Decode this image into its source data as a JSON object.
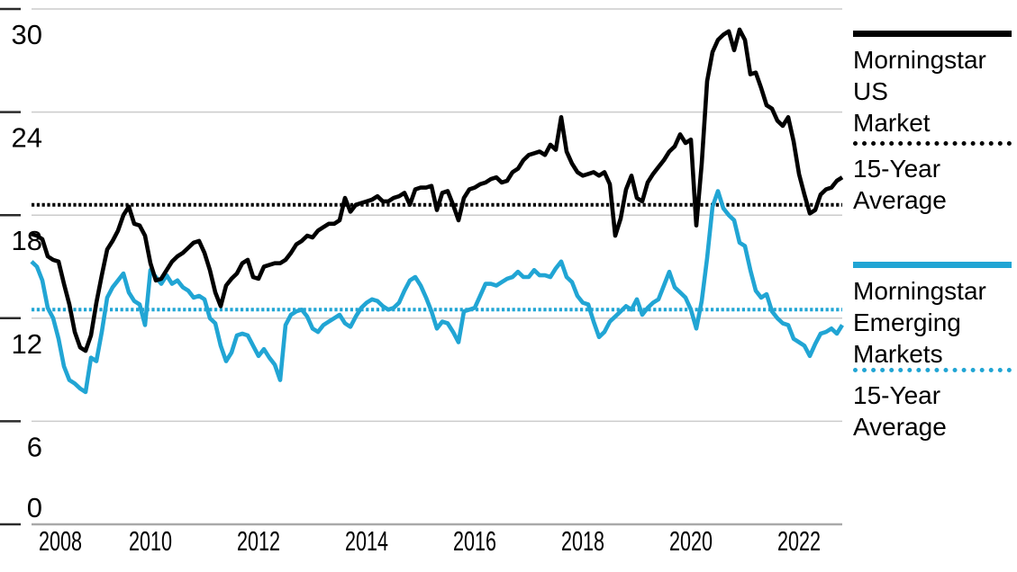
{
  "chart_data": {
    "type": "line",
    "x_axis": {
      "tick_years": [
        2008,
        2010,
        2012,
        2014,
        2016,
        2018,
        2020,
        2022
      ],
      "tick_labels": [
        "2008",
        "2010",
        "2012",
        "2014",
        "2016",
        "2018",
        "2020",
        "2022"
      ],
      "range": [
        2007.8,
        2022.8
      ]
    },
    "y_axis": {
      "ticks": [
        30,
        24,
        18,
        12,
        6,
        0
      ],
      "tick_labels": [
        "30",
        "24",
        "18",
        "12",
        "6",
        "0"
      ],
      "range": [
        0,
        30
      ]
    },
    "grid": true,
    "legend_position": "right",
    "series": [
      {
        "id": "us-market",
        "name": "Morningstar US Market",
        "type": "line",
        "style": "solid",
        "color": "#000000",
        "x_start": 2007.8,
        "x_step": 0.1,
        "values": [
          16.9,
          16.8,
          16.6,
          15.6,
          15.4,
          15.3,
          14.0,
          12.8,
          11.2,
          10.3,
          10.1,
          11.0,
          12.9,
          14.5,
          16.0,
          16.5,
          17.1,
          18.0,
          18.5,
          17.5,
          17.4,
          16.8,
          15.2,
          14.2,
          14.3,
          14.8,
          15.3,
          15.6,
          15.8,
          16.1,
          16.4,
          16.5,
          15.8,
          14.8,
          13.5,
          12.7,
          13.9,
          14.3,
          14.6,
          15.2,
          15.4,
          14.4,
          14.3,
          15.0,
          15.1,
          15.2,
          15.2,
          15.4,
          15.8,
          16.3,
          16.5,
          16.8,
          16.7,
          17.1,
          17.3,
          17.5,
          17.5,
          17.7,
          19.0,
          18.2,
          18.6,
          18.7,
          18.8,
          18.9,
          19.1,
          18.8,
          18.8,
          19.0,
          19.1,
          19.3,
          18.6,
          19.5,
          19.6,
          19.6,
          19.7,
          18.3,
          19.3,
          19.4,
          18.6,
          17.7,
          19.0,
          19.5,
          19.6,
          19.8,
          19.9,
          20.1,
          20.2,
          19.9,
          20.0,
          20.5,
          20.7,
          21.2,
          21.5,
          21.6,
          21.7,
          21.5,
          22.1,
          21.8,
          23.7,
          21.7,
          21.0,
          20.5,
          20.3,
          20.4,
          20.5,
          20.3,
          20.5,
          19.8,
          16.8,
          17.8,
          19.5,
          20.3,
          19.0,
          18.8,
          19.9,
          20.4,
          20.8,
          21.2,
          21.7,
          22.0,
          22.7,
          22.2,
          22.4,
          17.4,
          21.0,
          25.8,
          27.5,
          28.2,
          28.5,
          28.7,
          27.6,
          28.8,
          28.2,
          26.2,
          26.3,
          25.4,
          24.4,
          24.2,
          23.5,
          23.2,
          23.7,
          22.3,
          20.4,
          19.2,
          18.1,
          18.3,
          19.2,
          19.5,
          19.6,
          20.0,
          20.2
        ]
      },
      {
        "id": "us-15yr-average",
        "name": "15-Year Average (US Market)",
        "type": "hline",
        "style": "dotted",
        "color": "#000000",
        "value": 18.6
      },
      {
        "id": "emerging-markets",
        "name": "Morningstar Emerging Markets",
        "type": "line",
        "style": "solid",
        "color": "#21A5D4",
        "x_start": 2007.8,
        "x_step": 0.1,
        "values": [
          15.3,
          15.0,
          14.2,
          12.6,
          12.0,
          10.8,
          9.2,
          8.4,
          8.2,
          7.9,
          7.7,
          9.7,
          9.5,
          11.2,
          13.2,
          13.8,
          14.2,
          14.6,
          13.5,
          13.0,
          12.8,
          11.6,
          14.8,
          14.4,
          14.0,
          14.5,
          14.0,
          14.2,
          13.8,
          13.6,
          13.2,
          13.3,
          13.1,
          12.0,
          11.7,
          10.4,
          9.5,
          10.0,
          11.0,
          11.1,
          11.0,
          10.4,
          9.8,
          10.2,
          9.7,
          9.3,
          8.4,
          11.6,
          12.2,
          12.4,
          12.5,
          12.1,
          11.4,
          11.2,
          11.6,
          11.8,
          12.0,
          12.2,
          11.7,
          11.5,
          12.1,
          12.6,
          12.9,
          13.1,
          13.0,
          12.7,
          12.5,
          12.6,
          12.9,
          13.6,
          14.2,
          14.4,
          13.9,
          13.2,
          12.4,
          11.4,
          11.8,
          11.7,
          11.2,
          10.6,
          12.4,
          12.5,
          12.6,
          13.3,
          14.0,
          14.0,
          13.9,
          14.1,
          14.3,
          14.4,
          14.7,
          14.4,
          14.4,
          14.8,
          14.5,
          14.5,
          14.4,
          14.9,
          15.3,
          14.4,
          14.1,
          13.3,
          12.9,
          12.8,
          11.8,
          10.9,
          11.2,
          11.8,
          12.1,
          12.4,
          12.7,
          12.5,
          13.1,
          12.2,
          12.6,
          12.9,
          13.1,
          13.9,
          14.7,
          13.8,
          13.5,
          13.2,
          12.5,
          11.4,
          13.0,
          15.5,
          18.5,
          19.4,
          18.4,
          18.0,
          17.7,
          16.4,
          16.2,
          14.8,
          13.6,
          13.2,
          13.4,
          12.4,
          12.0,
          11.7,
          11.6,
          10.8,
          10.6,
          10.4,
          9.8,
          10.5,
          11.1,
          11.2,
          11.4,
          11.1,
          11.6
        ]
      },
      {
        "id": "em-15yr-average",
        "name": "15-Year Average (Emerging Markets)",
        "type": "hline",
        "style": "dotted",
        "color": "#21A5D4",
        "value": 12.5
      }
    ]
  },
  "legend": {
    "us_market": {
      "line1": "Morningstar",
      "line2": "US",
      "line3": "Market"
    },
    "us_average": {
      "line1": "15-Year",
      "line2": "Average"
    },
    "emerging_markets": {
      "line1": "Morningstar",
      "line2": "Emerging",
      "line3": "Markets"
    },
    "em_average": {
      "line1": "15-Year",
      "line2": "Average"
    }
  },
  "colors": {
    "us_market": "#000000",
    "emerging_markets": "#21A5D4",
    "gridline": "#CBCBCB",
    "baseline": "#A9A9A9",
    "tick": "#2B2B2B"
  }
}
